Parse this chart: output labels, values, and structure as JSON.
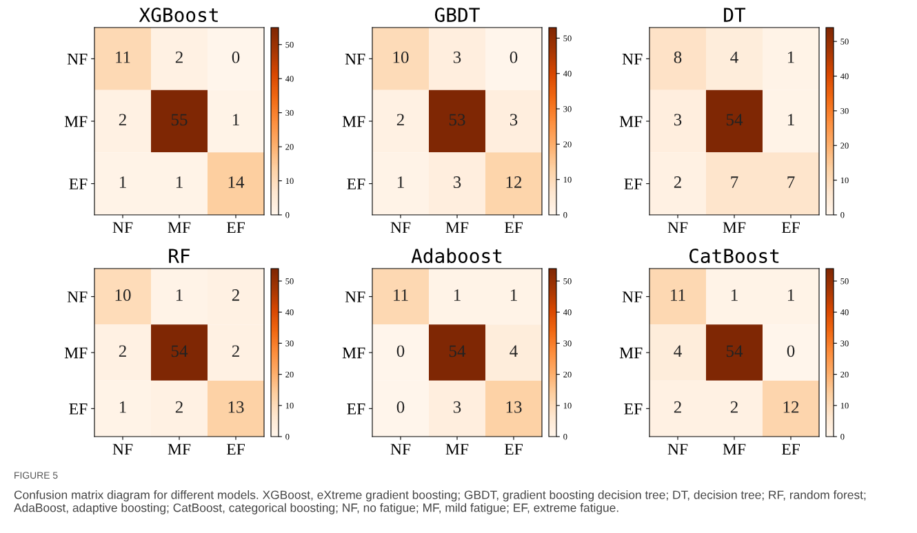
{
  "chart_data": [
    {
      "type": "heatmap",
      "title": "XGBoost",
      "categories": [
        "NF",
        "MF",
        "EF"
      ],
      "y_categories": [
        "NF",
        "MF",
        "EF"
      ],
      "cells": [
        [
          11,
          2,
          0
        ],
        [
          2,
          55,
          1
        ],
        [
          1,
          1,
          14
        ]
      ],
      "clim": [
        0,
        55
      ],
      "cticks": [
        0,
        10,
        20,
        30,
        40,
        50
      ],
      "data_labels": true,
      "annotations": [
        "FIGURE 5",
        "Confusion matrix diagram for different models. XGBoost, eXtreme gradient boosting; GBDT, gradient boosting decision tree; DT, decision tree; RF, random forest; AdaBoost, adaptive boosting; CatBoost, categorical boosting; NF, no fatigue; MF, mild fatigue; EF, extreme fatigue."
      ]
    },
    {
      "type": "heatmap",
      "title": "GBDT",
      "categories": [
        "NF",
        "MF",
        "EF"
      ],
      "y_categories": [
        "NF",
        "MF",
        "EF"
      ],
      "cells": [
        [
          10,
          3,
          0
        ],
        [
          2,
          53,
          3
        ],
        [
          1,
          3,
          12
        ]
      ],
      "clim": [
        0,
        53
      ],
      "cticks": [
        0,
        10,
        20,
        30,
        40,
        50
      ],
      "data_labels": true
    },
    {
      "type": "heatmap",
      "title": "DT",
      "categories": [
        "NF",
        "MF",
        "EF"
      ],
      "y_categories": [
        "NF",
        "MF",
        "EF"
      ],
      "cells": [
        [
          8,
          4,
          1
        ],
        [
          3,
          54,
          1
        ],
        [
          2,
          7,
          7
        ]
      ],
      "clim": [
        0,
        54
      ],
      "cticks": [
        0,
        10,
        20,
        30,
        40,
        50
      ],
      "data_labels": true
    },
    {
      "type": "heatmap",
      "title": "RF",
      "categories": [
        "NF",
        "MF",
        "EF"
      ],
      "y_categories": [
        "NF",
        "MF",
        "EF"
      ],
      "cells": [
        [
          10,
          1,
          2
        ],
        [
          2,
          54,
          2
        ],
        [
          1,
          2,
          13
        ]
      ],
      "clim": [
        0,
        54
      ],
      "cticks": [
        0,
        10,
        20,
        30,
        40,
        50
      ],
      "data_labels": true
    },
    {
      "type": "heatmap",
      "title": "Adaboost",
      "categories": [
        "NF",
        "MF",
        "EF"
      ],
      "y_categories": [
        "NF",
        "MF",
        "EF"
      ],
      "cells": [
        [
          11,
          1,
          1
        ],
        [
          0,
          54,
          4
        ],
        [
          0,
          3,
          13
        ]
      ],
      "clim": [
        0,
        54
      ],
      "cticks": [
        0,
        10,
        20,
        30,
        40,
        50
      ],
      "data_labels": true
    },
    {
      "type": "heatmap",
      "title": "CatBoost",
      "categories": [
        "NF",
        "MF",
        "EF"
      ],
      "y_categories": [
        "NF",
        "MF",
        "EF"
      ],
      "cells": [
        [
          11,
          1,
          1
        ],
        [
          4,
          54,
          0
        ],
        [
          2,
          2,
          12
        ]
      ],
      "clim": [
        0,
        54
      ],
      "cticks": [
        0,
        10,
        20,
        30,
        40,
        50
      ],
      "data_labels": true
    }
  ]
}
